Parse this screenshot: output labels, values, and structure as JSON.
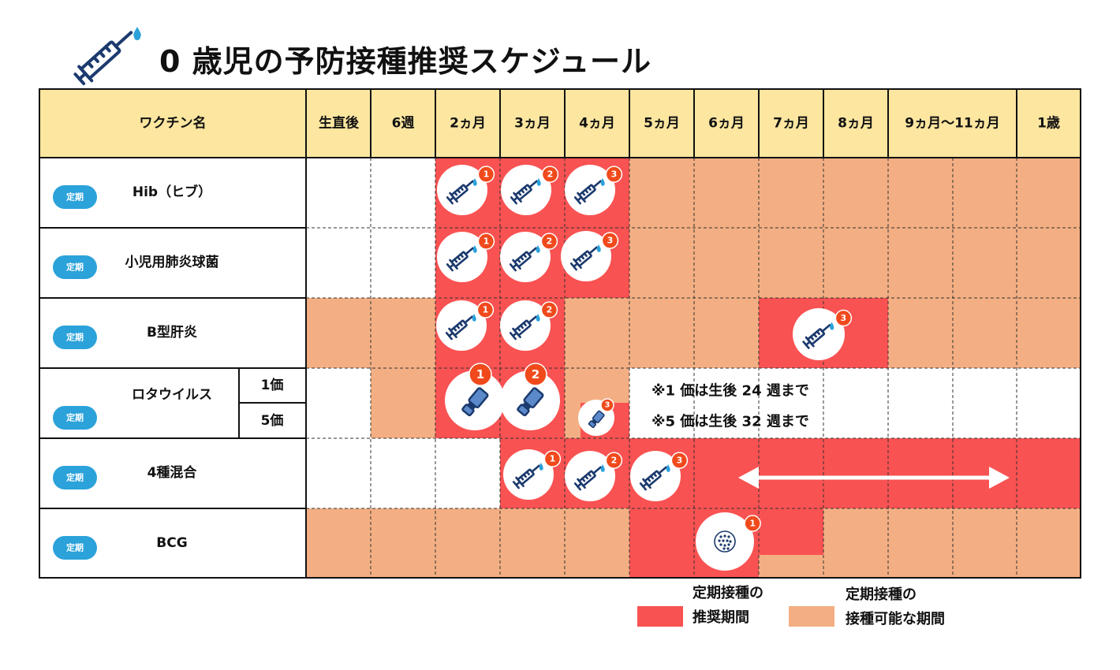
{
  "title": "0 歳児の予防接種推奨スケジュール",
  "header": {
    "vaccine_col": "ワクチン名",
    "periods": [
      "生直後",
      "6週",
      "2ヵ月",
      "3ヵ月",
      "4ヵ月",
      "5ヵ月",
      "6ヵ月",
      "7ヵ月",
      "8ヵ月",
      "9ヵ月〜11ヵ月",
      "1歳"
    ]
  },
  "colors": {
    "header_bg": "#FCE6A0",
    "recommended": "#F95252",
    "possible": "#F3AF83",
    "empty": "#FFFFFF",
    "badge_blue": "#2BA2DA",
    "dose_badge": "#F04A1C",
    "icon_navy": "#1B3A6E",
    "arrow": "#FFFFFF"
  },
  "legend": {
    "recommended_line1": "定期接種の",
    "recommended_line2": "推奨期間",
    "possible_line1": "定期接種の",
    "possible_line2": "接種可能な期間"
  },
  "notes": {
    "rota_1": "※1 価は生後 24 週まで",
    "rota_5": "※5 価は生後 32 週まで"
  },
  "chart_data": {
    "type": "table",
    "columns": [
      "生直後",
      "6週",
      "2ヵ月",
      "3ヵ月",
      "4ヵ月",
      "5ヵ月",
      "6ヵ月",
      "7ヵ月",
      "8ヵ月",
      "9ヵ月〜11ヵ月",
      "1歳"
    ],
    "rows": [
      {
        "name": "Hib（ヒブ）",
        "badge": "定期",
        "cells": [
          "empty",
          "empty",
          "recommended",
          "recommended",
          "recommended",
          "possible",
          "possible",
          "possible",
          "possible",
          "possible",
          "possible"
        ],
        "doses": [
          {
            "column": "2ヵ月",
            "number": "1",
            "kind": "syringe"
          },
          {
            "column": "3ヵ月",
            "number": "2",
            "kind": "syringe"
          },
          {
            "column": "4ヵ月",
            "number": "3",
            "kind": "syringe"
          }
        ]
      },
      {
        "name": "小児用肺炎球菌",
        "badge": "定期",
        "cells": [
          "empty",
          "empty",
          "recommended",
          "recommended",
          "recommended",
          "possible",
          "possible",
          "possible",
          "possible",
          "possible",
          "possible"
        ],
        "doses": [
          {
            "column": "2ヵ月",
            "number": "1",
            "kind": "syringe"
          },
          {
            "column": "3ヵ月",
            "number": "2",
            "kind": "syringe"
          },
          {
            "column": "4ヵ月",
            "number": "3",
            "kind": "syringe"
          }
        ]
      },
      {
        "name": "B型肝炎",
        "badge": "定期",
        "cells": [
          "possible",
          "possible",
          "recommended",
          "recommended",
          "possible",
          "possible",
          "possible",
          "recommended",
          "recommended",
          "possible",
          "possible"
        ],
        "doses": [
          {
            "column": "2ヵ月",
            "number": "1",
            "kind": "syringe"
          },
          {
            "column": "3ヵ月",
            "number": "2",
            "kind": "syringe"
          },
          {
            "column": "7ヵ月",
            "number": "3",
            "kind": "syringe"
          }
        ]
      },
      {
        "name": "ロタウイルス",
        "badge": "定期",
        "sub_labels": [
          "1価",
          "5価"
        ],
        "cells": [
          "empty",
          "possible",
          "recommended",
          "recommended",
          "possible",
          "empty",
          "empty",
          "empty",
          "empty",
          "empty",
          "empty"
        ],
        "doses": [
          {
            "column": "2ヵ月",
            "number": "1",
            "kind": "oral"
          },
          {
            "column": "3ヵ月",
            "number": "2",
            "kind": "oral"
          },
          {
            "column": "4ヵ月",
            "number": "3",
            "kind": "oral"
          }
        ]
      },
      {
        "name": "4種混合",
        "badge": "定期",
        "cells": [
          "empty",
          "empty",
          "empty",
          "recommended",
          "recommended",
          "recommended",
          "recommended",
          "recommended",
          "recommended",
          "recommended",
          "recommended"
        ],
        "doses": [
          {
            "column": "3ヵ月",
            "number": "1",
            "kind": "syringe"
          },
          {
            "column": "4ヵ月",
            "number": "2",
            "kind": "syringe"
          },
          {
            "column": "5ヵ月",
            "number": "3",
            "kind": "syringe"
          }
        ]
      },
      {
        "name": "BCG",
        "badge": "定期",
        "cells": [
          "possible",
          "possible",
          "possible",
          "possible",
          "possible",
          "recommended",
          "recommended",
          "recommended",
          "possible",
          "possible",
          "possible"
        ],
        "doses": [
          {
            "column": "6ヵ月",
            "number": "1",
            "kind": "stamp"
          }
        ]
      }
    ]
  }
}
